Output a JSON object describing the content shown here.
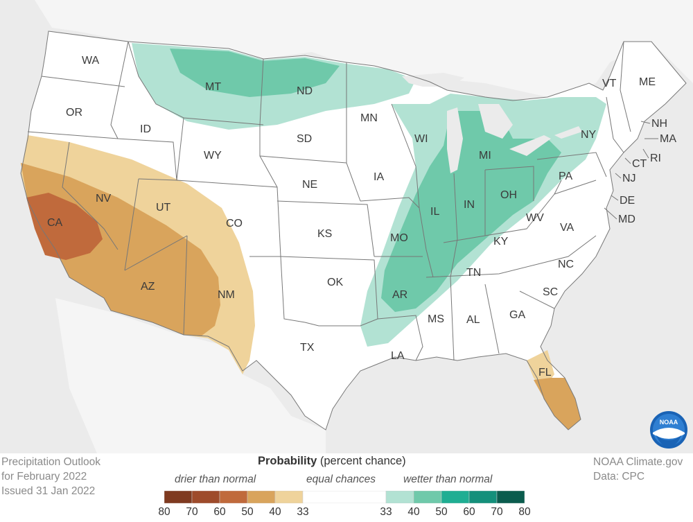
{
  "title_block": {
    "line1": "Precipitation Outlook",
    "line2": "for February 2022",
    "line3": "Issued 31 Jan 2022"
  },
  "credit_block": {
    "line1": "NOAA Climate.gov",
    "line2": "Data: CPC"
  },
  "logo_text": "NOAA",
  "legend": {
    "title_bold": "Probability",
    "title_rest": " (percent chance)",
    "drier_label": "drier than normal",
    "equal_label": "equal chances",
    "wetter_label": "wetter than normal",
    "ticks": [
      "80",
      "70",
      "60",
      "50",
      "40",
      "33",
      "33",
      "40",
      "50",
      "60",
      "70",
      "80"
    ],
    "dry_colors": [
      "#7f3a20",
      "#9e4b2b",
      "#c06a3c",
      "#d9a45c",
      "#efd39b"
    ],
    "equal_color": "#ffffff",
    "wet_colors": [
      "#b2e2d3",
      "#6fc9aa",
      "#1fae93",
      "#14907b",
      "#0b5c4e"
    ]
  },
  "state_labels": [
    "WA",
    "OR",
    "ID",
    "MT",
    "ND",
    "WY",
    "SD",
    "MN",
    "WI",
    "MI",
    "NY",
    "VT",
    "ME",
    "NH",
    "MA",
    "RI",
    "CT",
    "NJ",
    "PA",
    "DE",
    "MD",
    "VA",
    "WV",
    "OH",
    "IN",
    "IL",
    "IA",
    "NE",
    "CO",
    "UT",
    "NV",
    "CA",
    "AZ",
    "NM",
    "KS",
    "MO",
    "KY",
    "TN",
    "NC",
    "SC",
    "GA",
    "AL",
    "MS",
    "AR",
    "OK",
    "TX",
    "LA",
    "FL"
  ]
}
